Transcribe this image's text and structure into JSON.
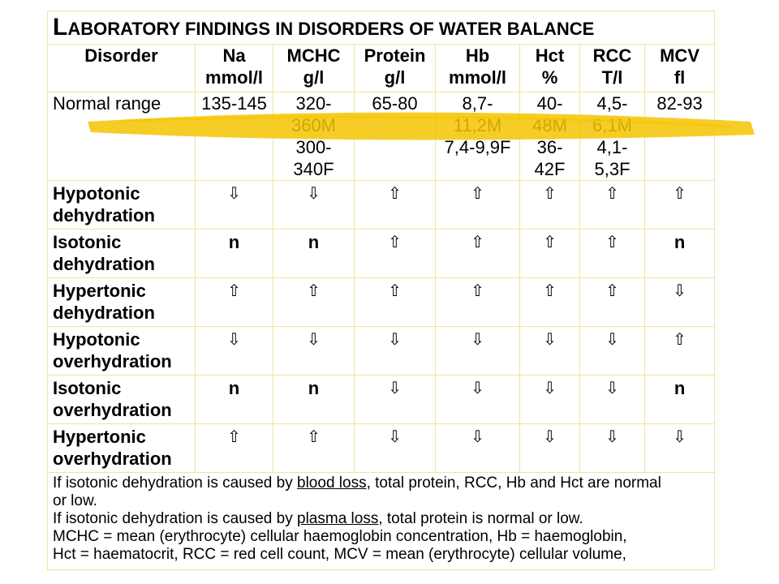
{
  "title": {
    "first": "L",
    "rest": "ABORATORY FINDINGS IN DISORDERS OF WATER BALANCE"
  },
  "header": {
    "disorder": "Disorder",
    "cols": [
      {
        "l1": "Na",
        "l2": "mmol/l"
      },
      {
        "l1": "MCHC",
        "l2": "g/l"
      },
      {
        "l1": "Protein",
        "l2": "g/l"
      },
      {
        "l1": "Hb",
        "l2": "mmol/l"
      },
      {
        "l1": "Hct",
        "l2": "%"
      },
      {
        "l1": "RCC",
        "l2": "T/l"
      },
      {
        "l1": "MCV",
        "l2": "fl"
      }
    ]
  },
  "normal": {
    "label": "Normal range",
    "values": [
      [
        "135-145"
      ],
      [
        "320-",
        "360M",
        "300-",
        "340F"
      ],
      [
        "65-80"
      ],
      [
        "8,7-",
        "11,2M",
        "7,4-9,9F"
      ],
      [
        "40-",
        "48M",
        "36-",
        "42F"
      ],
      [
        "4,5-",
        "6,1M",
        "4,1-",
        "5,3F"
      ],
      [
        "82-93"
      ]
    ]
  },
  "rows": [
    {
      "l1": "Hypotonic",
      "l2": "dehydration",
      "vals": [
        "⇩",
        "⇩",
        "⇧",
        "⇧",
        "⇧",
        "⇧",
        "⇧"
      ]
    },
    {
      "l1": "Isotonic",
      "l2": "dehydration",
      "vals": [
        "n",
        "n",
        "⇧",
        "⇧",
        "⇧",
        "⇧",
        "n"
      ]
    },
    {
      "l1": "Hypertonic",
      "l2": "dehydration",
      "vals": [
        "⇧",
        "⇧",
        "⇧",
        "⇧",
        "⇧",
        "⇧",
        "⇩"
      ]
    },
    {
      "l1": "Hypotonic",
      "l2": "overhydration",
      "vals": [
        "⇩",
        "⇩",
        "⇩",
        "⇩",
        "⇩",
        "⇩",
        "⇧"
      ]
    },
    {
      "l1": "Isotonic",
      "l2": "overhydration",
      "vals": [
        "n",
        "n",
        "⇩",
        "⇩",
        "⇩",
        "⇩",
        "n"
      ]
    },
    {
      "l1": "Hypertonic",
      "l2": "overhydration",
      "vals": [
        "⇧",
        "⇧",
        "⇩",
        "⇩",
        "⇩",
        "⇩",
        "⇩"
      ]
    }
  ],
  "footnotes": {
    "n1a": "If isotonic dehydration is caused by ",
    "n1u": "blood loss",
    "n1b": ", total protein, RCC, Hb and Hct are normal",
    "n1c": "or low.",
    "n2a": "If isotonic dehydration is caused by ",
    "n2u": "plasma loss",
    "n2b": ", total protein is normal or low.",
    "n3": "MCHC = mean (erythrocyte) cellular haemoglobin concentration, Hb = haemoglobin,",
    "n4": "Hct = haematocrit, RCC = red cell count, MCV = mean (erythrocyte) cellular volume,"
  },
  "colors": {
    "grid": "#f0e49a",
    "highlighter": "#f5c400"
  }
}
